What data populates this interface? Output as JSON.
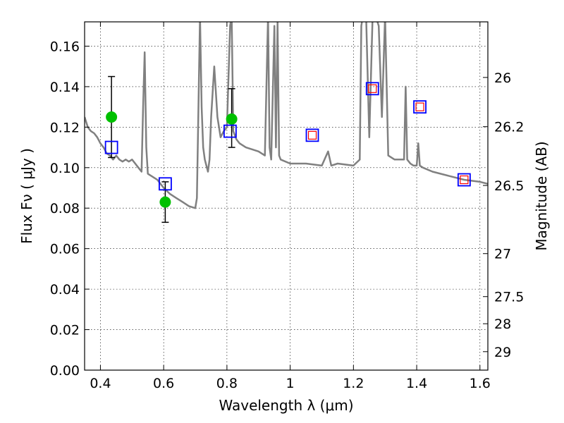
{
  "chart_data": {
    "type": "scatter",
    "title": "",
    "xlabel": "Wavelength  λ (μm)",
    "ylabel": "Flux  Fν  ( μJy )",
    "y2label": "Magnitude (AB)",
    "xlim": [
      0.35,
      1.625
    ],
    "ylim": [
      0.0,
      0.172
    ],
    "grid": true,
    "legend": "none",
    "x_ticks": [
      {
        "value": 0.4,
        "label": "0.4"
      },
      {
        "value": 0.6,
        "label": "0.6"
      },
      {
        "value": 0.8,
        "label": "0.8"
      },
      {
        "value": 1.0,
        "label": "1"
      },
      {
        "value": 1.2,
        "label": "1.2"
      },
      {
        "value": 1.4,
        "label": "1.4"
      },
      {
        "value": 1.6,
        "label": "1.6"
      }
    ],
    "y_ticks": [
      {
        "value": 0.0,
        "label": "0.00"
      },
      {
        "value": 0.02,
        "label": "0.02"
      },
      {
        "value": 0.04,
        "label": "0.04"
      },
      {
        "value": 0.06,
        "label": "0.06"
      },
      {
        "value": 0.08,
        "label": "0.08"
      },
      {
        "value": 0.1,
        "label": "0.10"
      },
      {
        "value": 0.12,
        "label": "0.12"
      },
      {
        "value": 0.14,
        "label": "0.14"
      },
      {
        "value": 0.16,
        "label": "0.16"
      }
    ],
    "y2_ticks": [
      {
        "mag": 26,
        "label": "26"
      },
      {
        "mag": 26.2,
        "label": "26.2"
      },
      {
        "mag": 26.5,
        "label": "26.5"
      },
      {
        "mag": 27,
        "label": "27"
      },
      {
        "mag": 27.5,
        "label": "27.5"
      },
      {
        "mag": 28,
        "label": "28"
      },
      {
        "mag": 29,
        "label": "29"
      }
    ],
    "series": [
      {
        "kind": "line",
        "color": "#808080",
        "x": [
          0.35,
          0.36,
          0.37,
          0.38,
          0.39,
          0.4,
          0.41,
          0.42,
          0.43,
          0.44,
          0.45,
          0.46,
          0.47,
          0.48,
          0.49,
          0.5,
          0.51,
          0.52,
          0.53,
          0.535,
          0.54,
          0.545,
          0.55,
          0.56,
          0.58,
          0.6,
          0.62,
          0.64,
          0.66,
          0.68,
          0.7,
          0.705,
          0.71,
          0.715,
          0.72,
          0.725,
          0.73,
          0.74,
          0.745,
          0.75,
          0.76,
          0.77,
          0.78,
          0.79,
          0.8,
          0.81,
          0.815,
          0.82,
          0.83,
          0.84,
          0.86,
          0.88,
          0.9,
          0.92,
          0.93,
          0.935,
          0.94,
          0.95,
          0.955,
          0.96,
          0.965,
          0.97,
          1.0,
          1.05,
          1.1,
          1.12,
          1.13,
          1.15,
          1.2,
          1.22,
          1.225,
          1.23,
          1.24,
          1.25,
          1.26,
          1.27,
          1.28,
          1.29,
          1.3,
          1.31,
          1.33,
          1.36,
          1.365,
          1.37,
          1.38,
          1.39,
          1.4,
          1.405,
          1.41,
          1.42,
          1.45,
          1.5,
          1.55,
          1.6,
          1.625
        ],
        "y": [
          0.125,
          0.12,
          0.118,
          0.117,
          0.115,
          0.112,
          0.11,
          0.107,
          0.106,
          0.104,
          0.106,
          0.104,
          0.103,
          0.104,
          0.103,
          0.104,
          0.102,
          0.1,
          0.098,
          0.13,
          0.157,
          0.11,
          0.097,
          0.096,
          0.094,
          0.09,
          0.087,
          0.085,
          0.083,
          0.081,
          0.08,
          0.085,
          0.13,
          0.175,
          0.13,
          0.11,
          0.104,
          0.098,
          0.104,
          0.125,
          0.15,
          0.125,
          0.115,
          0.118,
          0.12,
          0.17,
          0.175,
          0.118,
          0.114,
          0.112,
          0.11,
          0.109,
          0.108,
          0.106,
          0.175,
          0.11,
          0.104,
          0.17,
          0.11,
          0.172,
          0.106,
          0.104,
          0.102,
          0.102,
          0.101,
          0.108,
          0.101,
          0.102,
          0.101,
          0.104,
          0.17,
          0.175,
          0.175,
          0.115,
          0.172,
          0.175,
          0.17,
          0.125,
          0.175,
          0.106,
          0.104,
          0.104,
          0.14,
          0.104,
          0.102,
          0.101,
          0.101,
          0.112,
          0.101,
          0.1,
          0.098,
          0.096,
          0.094,
          0.093,
          0.092
        ]
      },
      {
        "kind": "markers",
        "marker": "circle",
        "color": "#00c000",
        "x": [
          0.435,
          0.605,
          0.815
        ],
        "y": [
          0.125,
          0.083,
          0.124
        ],
        "yerr_low": [
          0.105,
          0.073,
          0.11
        ],
        "yerr_high": [
          0.145,
          0.093,
          0.139
        ]
      },
      {
        "kind": "markers",
        "marker": "open-square",
        "color": "#0000ff",
        "x": [
          0.435,
          0.605,
          0.81,
          1.07,
          1.26,
          1.41,
          1.55
        ],
        "y": [
          0.11,
          0.092,
          0.118,
          0.116,
          0.139,
          0.13,
          0.094
        ]
      },
      {
        "kind": "markers",
        "marker": "open-square-small",
        "color": "#ff0000",
        "x": [
          1.07,
          1.26,
          1.41,
          1.55
        ],
        "y": [
          0.116,
          0.139,
          0.13,
          0.094
        ]
      }
    ]
  }
}
